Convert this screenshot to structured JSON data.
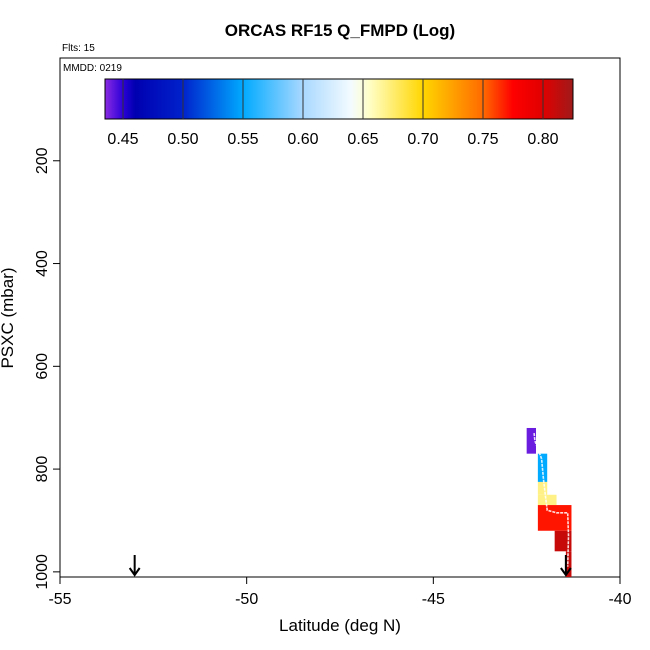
{
  "chart_data": {
    "type": "heatmap",
    "title": "ORCAS RF15 Q_FMPD (Log)",
    "annotations": {
      "flights": "Flts: 15",
      "date": "MMDD: 0219"
    },
    "xlabel": "Latitude (deg N)",
    "ylabel": "PSXC (mbar)",
    "xlim": [
      -55,
      -40
    ],
    "ylim": [
      1010,
      0
    ],
    "x_ticks": [
      -55,
      -50,
      -45,
      -40
    ],
    "x_tick_labels": [
      "-55",
      "-50",
      "-45",
      "-40"
    ],
    "y_ticks": [
      200,
      400,
      600,
      800,
      1000
    ],
    "y_tick_labels": [
      "200",
      "400",
      "600",
      "800",
      "1000"
    ],
    "colorbar": {
      "range": [
        0.435,
        0.825
      ],
      "ticks": [
        0.45,
        0.5,
        0.55,
        0.6,
        0.65,
        0.7,
        0.75,
        0.8
      ],
      "tick_labels": [
        "0.45",
        "0.50",
        "0.55",
        "0.60",
        "0.65",
        "0.70",
        "0.75",
        "0.80"
      ],
      "stops": [
        {
          "v": 0.435,
          "c": "#8a2be2"
        },
        {
          "v": 0.45,
          "c": "#2b00d8"
        },
        {
          "v": 0.46,
          "c": "#0000b0"
        },
        {
          "v": 0.5,
          "c": "#0022cc"
        },
        {
          "v": 0.55,
          "c": "#00aaff"
        },
        {
          "v": 0.6,
          "c": "#a9d8ff"
        },
        {
          "v": 0.64,
          "c": "#f3fbff"
        },
        {
          "v": 0.655,
          "c": "#ffffc8"
        },
        {
          "v": 0.7,
          "c": "#ffd600"
        },
        {
          "v": 0.75,
          "c": "#ff6a00"
        },
        {
          "v": 0.775,
          "c": "#ff0000"
        },
        {
          "v": 0.8,
          "c": "#e00000"
        },
        {
          "v": 0.825,
          "c": "#a01a1a"
        }
      ]
    },
    "cells": [
      {
        "lat0": -42.5,
        "lat1": -42.25,
        "p0": 720,
        "p1": 770,
        "value": 0.44
      },
      {
        "lat0": -42.2,
        "lat1": -41.95,
        "p0": 770,
        "p1": 825,
        "value": 0.55
      },
      {
        "lat0": -42.2,
        "lat1": -41.95,
        "p0": 825,
        "p1": 850,
        "value": 0.67
      },
      {
        "lat0": -42.2,
        "lat1": -41.7,
        "p0": 850,
        "p1": 870,
        "value": 0.67
      },
      {
        "lat0": -42.2,
        "lat1": -41.3,
        "p0": 870,
        "p1": 920,
        "value": 0.77
      },
      {
        "lat0": -41.75,
        "lat1": -41.3,
        "p0": 920,
        "p1": 960,
        "value": 0.81
      },
      {
        "lat0": -41.45,
        "lat1": -41.3,
        "p0": 960,
        "p1": 1010,
        "value": 0.81
      }
    ],
    "flight_track": [
      {
        "lat": -42.3,
        "p": 730
      },
      {
        "lat": -42.28,
        "p": 745
      },
      {
        "lat": -42.1,
        "p": 780
      },
      {
        "lat": -42.05,
        "p": 820
      },
      {
        "lat": -42.0,
        "p": 850
      },
      {
        "lat": -41.95,
        "p": 880
      },
      {
        "lat": -41.7,
        "p": 885
      },
      {
        "lat": -41.4,
        "p": 885
      },
      {
        "lat": -41.38,
        "p": 930
      },
      {
        "lat": -41.4,
        "p": 990
      }
    ],
    "arrows": [
      {
        "lat": -53.0
      },
      {
        "lat": -41.45
      }
    ]
  }
}
